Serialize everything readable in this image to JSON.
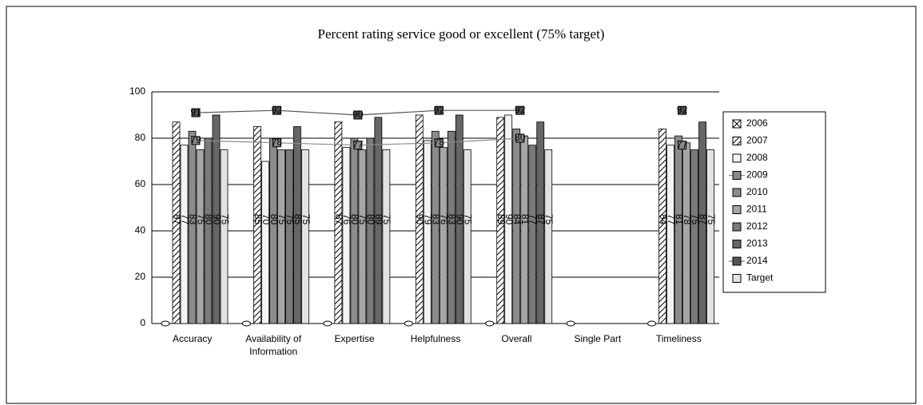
{
  "chart_data": {
    "type": "bar",
    "title": "Percent rating service good or excellent (75% target)",
    "categories": [
      "Accuracy",
      "Availability of Information",
      "Expertise",
      "Helpfulness",
      "Overall",
      "Single Part",
      "Timeliness"
    ],
    "ylim": [
      0,
      100
    ],
    "yticks": [
      0,
      20,
      40,
      60,
      80,
      100
    ],
    "grid": true,
    "legend": "right",
    "series": [
      {
        "name": "2006",
        "mark": "dot",
        "color": "#ffffff",
        "values": [
          0,
          0,
          0,
          0,
          0,
          0,
          0
        ]
      },
      {
        "name": "2007",
        "mark": "bar",
        "pattern": "hatch",
        "color": "#ffffff",
        "values": [
          87,
          85,
          87,
          90,
          89,
          null,
          84
        ]
      },
      {
        "name": "2008",
        "mark": "bar",
        "color": "#f4f4f4",
        "values": [
          77,
          70,
          76,
          79,
          90,
          null,
          77
        ]
      },
      {
        "name": "2009",
        "mark": "line",
        "color": "#8a8a8a",
        "values": [
          79,
          78,
          77,
          78,
          80,
          null,
          77
        ]
      },
      {
        "name": "2010",
        "mark": "bar",
        "color": "#8c8c8c",
        "values": [
          83,
          80,
          80,
          83,
          84,
          null,
          81
        ]
      },
      {
        "name": "2011",
        "mark": "bar",
        "color": "#a6a6a6",
        "values": [
          75,
          75,
          75,
          76,
          81,
          null,
          78
        ]
      },
      {
        "name": "2012",
        "mark": "bar",
        "color": "#7a7a7a",
        "values": [
          80,
          75,
          80,
          83,
          77,
          null,
          75
        ]
      },
      {
        "name": "2013",
        "mark": "bar",
        "color": "#666666",
        "values": [
          90,
          85,
          89,
          90,
          87,
          null,
          87
        ]
      },
      {
        "name": "2014",
        "mark": "line",
        "color": "#555555",
        "values": [
          91,
          92,
          90,
          92,
          92,
          null,
          92
        ]
      },
      {
        "name": "Target",
        "mark": "bar",
        "color": "#e2e2e2",
        "values": [
          75,
          75,
          75,
          75,
          75,
          null,
          75
        ]
      }
    ]
  }
}
